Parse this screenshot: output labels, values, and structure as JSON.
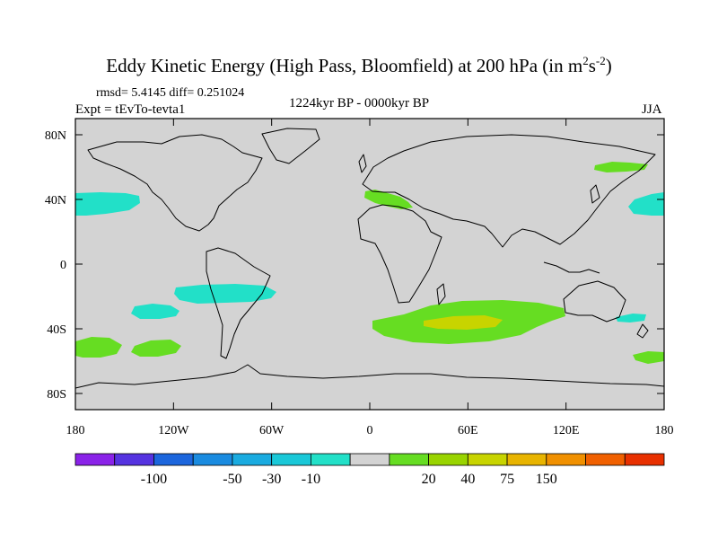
{
  "figure": {
    "title_main": "Eddy Kinetic Energy (High Pass, Bloomfield) at 200 hPa (in m",
    "title_sup1": "2",
    "title_mid": "s",
    "title_sup2": "-2",
    "title_end": ")",
    "stats": "rmsd= 5.4145 diff= 0.251024",
    "experiment": "Expt = tEvTo-tevta1",
    "period": "1224kyr BP - 0000kyr BP",
    "season": "JJA"
  },
  "map_data": {
    "type": "filled-contour-map",
    "lon_range": [
      -180,
      180
    ],
    "lat_range": [
      -90,
      90
    ],
    "lon_ticks": [
      "180",
      "120W",
      "60W",
      "0",
      "60E",
      "120E",
      "180"
    ],
    "lat_ticks": [
      "80N",
      "40N",
      "0",
      "40S",
      "80S"
    ],
    "background_color": "#d3d3d3",
    "regions": [
      {
        "name": "n-pacific-east",
        "value_class": "-10",
        "color": "#22e0c8"
      },
      {
        "name": "n-pacific-west",
        "value_class": "-10",
        "color": "#22e0c8"
      },
      {
        "name": "s-pacific",
        "value_class": "-10",
        "color": "#22e0c8"
      },
      {
        "name": "s-pacific-east",
        "value_class": "-10",
        "color": "#22e0c8"
      },
      {
        "name": "tasman",
        "value_class": "-10",
        "color": "#22e0c8"
      },
      {
        "name": "s-pacific-green-1",
        "value_class": "20",
        "color": "#66dd22"
      },
      {
        "name": "s-pacific-green-2",
        "value_class": "20",
        "color": "#66dd22"
      },
      {
        "name": "s-indian-ocean",
        "value_class": "20",
        "color": "#66dd22"
      },
      {
        "name": "s-indian-core",
        "value_class": "40",
        "color": "#c8d400"
      },
      {
        "name": "mediterranean",
        "value_class": "20",
        "color": "#66dd22"
      },
      {
        "name": "kamchatka",
        "value_class": "20",
        "color": "#66dd22"
      },
      {
        "name": "nz-east",
        "value_class": "20",
        "color": "#66dd22"
      }
    ]
  },
  "colorbar": {
    "colors": [
      "#8a22e8",
      "#5533e0",
      "#1c66dd",
      "#1a8be0",
      "#1aabe0",
      "#1ac8d8",
      "#22e0c8",
      "#d3d3d3",
      "#66dd22",
      "#99d400",
      "#c8d400",
      "#e8b400",
      "#f09000",
      "#f06000",
      "#e83000"
    ],
    "labels": [
      "-100",
      "-50",
      "-30",
      "-10",
      "20",
      "40",
      "75",
      "150"
    ]
  }
}
